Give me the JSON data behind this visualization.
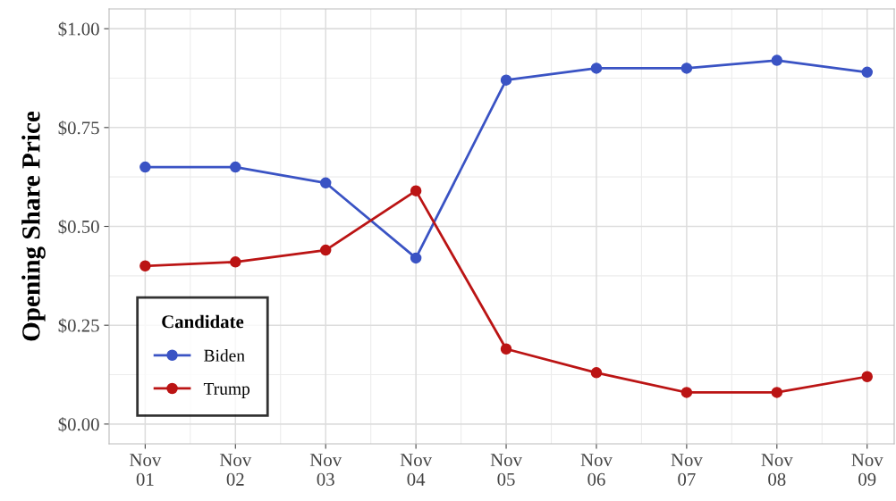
{
  "chart_data": {
    "type": "line",
    "ylabel": "Opening Share Price",
    "categories": [
      "Nov\n01",
      "Nov\n02",
      "Nov\n03",
      "Nov\n04",
      "Nov\n05",
      "Nov\n06",
      "Nov\n07",
      "Nov\n08",
      "Nov\n09"
    ],
    "series": [
      {
        "name": "Biden",
        "color": "#3a53c4",
        "values": [
          0.65,
          0.65,
          0.61,
          0.42,
          0.87,
          0.9,
          0.9,
          0.92,
          0.89
        ]
      },
      {
        "name": "Trump",
        "color": "#bb1414",
        "values": [
          0.4,
          0.41,
          0.44,
          0.59,
          0.19,
          0.13,
          0.08,
          0.08,
          0.12
        ]
      }
    ],
    "ylim": [
      -0.05,
      1.05
    ],
    "yticks": [
      {
        "value": 0,
        "label": "$0.00"
      },
      {
        "value": 0.25,
        "label": "$0.25"
      },
      {
        "value": 0.5,
        "label": "$0.50"
      },
      {
        "value": 0.75,
        "label": "$0.75"
      },
      {
        "value": 1,
        "label": "$1.00"
      }
    ],
    "legend_title": "Candidate",
    "legend": "bottom left",
    "grid": true,
    "marker": "circle",
    "line_style": "solid"
  }
}
